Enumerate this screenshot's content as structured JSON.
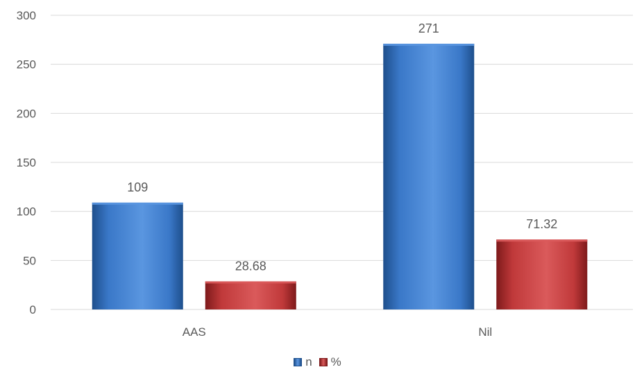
{
  "chart_data": {
    "type": "bar",
    "categories": [
      "AAS",
      "Nil"
    ],
    "series": [
      {
        "name": "n",
        "values": [
          109,
          271
        ],
        "labels": [
          "109",
          "271"
        ],
        "color": "#3A78C8",
        "colorLight": "#5A96E0",
        "colorDark": "#1E4F8C"
      },
      {
        "name": "%",
        "values": [
          28.68,
          71.32
        ],
        "labels": [
          "28.68",
          "71.32"
        ],
        "color": "#C0393A",
        "colorLight": "#DA5A5B",
        "colorDark": "#7E1A1B"
      }
    ],
    "ylim": [
      0,
      300
    ],
    "yticks": [
      0,
      50,
      100,
      150,
      200,
      250,
      300
    ],
    "ytick_labels": [
      "0",
      "50",
      "100",
      "150",
      "200",
      "250",
      "300"
    ],
    "grid": true,
    "legend_position": "bottom",
    "gridColor": "#D9D9D9",
    "textColor": "#595959"
  }
}
